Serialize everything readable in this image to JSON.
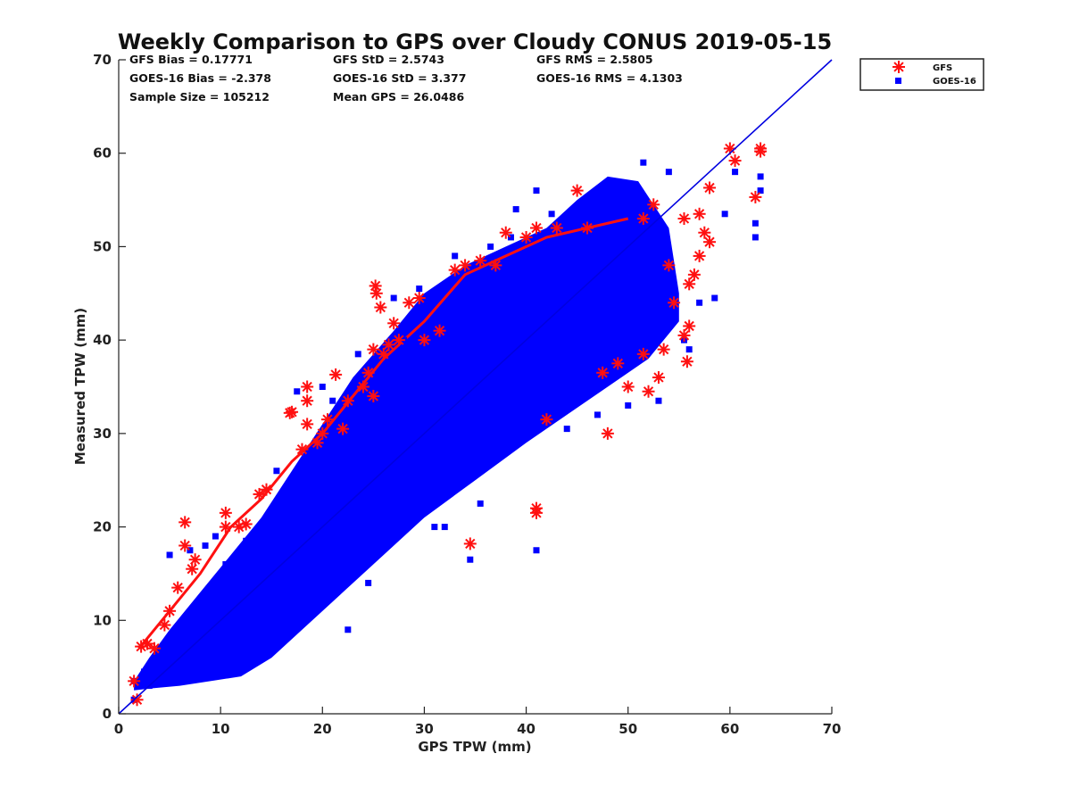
{
  "chart_data": {
    "type": "scatter",
    "title": "Weekly Comparison to GPS over Cloudy CONUS 2019-05-15",
    "xlabel": "GPS TPW (mm)",
    "ylabel": "Measured TPW (mm)",
    "xlim": [
      0,
      70
    ],
    "ylim": [
      0,
      70
    ],
    "xticks": [
      "0",
      "10",
      "20",
      "30",
      "40",
      "50",
      "60",
      "70"
    ],
    "yticks": [
      "0",
      "10",
      "20",
      "30",
      "40",
      "50",
      "60",
      "70"
    ],
    "grid": false,
    "legend_position": "outside-top-right",
    "stats": [
      [
        "GFS Bias = 0.17771",
        "GFS StD = 2.5743",
        "GFS RMS = 2.5805"
      ],
      [
        "GOES-16 Bias = -2.378",
        "GOES-16 StD = 3.377",
        "GOES-16 RMS = 4.1303"
      ],
      [
        "Sample Size = 105212",
        "Mean GPS = 26.0486"
      ]
    ],
    "reference_line": {
      "type": "one-to-one",
      "x": [
        0,
        70
      ],
      "y": [
        0,
        70
      ],
      "color": "#0000e0"
    },
    "series": [
      {
        "name": "GFS",
        "marker": "asterisk",
        "color": "#ff1010",
        "points": [
          [
            1.5,
            3.5
          ],
          [
            1.8,
            1.5
          ],
          [
            2.2,
            7.2
          ],
          [
            2.8,
            7.5
          ],
          [
            3.5,
            7.0
          ],
          [
            4.5,
            9.5
          ],
          [
            5.0,
            11.0
          ],
          [
            5.8,
            13.5
          ],
          [
            6.5,
            18.0
          ],
          [
            6.5,
            20.5
          ],
          [
            7.2,
            15.5
          ],
          [
            7.5,
            16.5
          ],
          [
            10.5,
            21.5
          ],
          [
            10.5,
            20.0
          ],
          [
            11.8,
            20.0
          ],
          [
            12.5,
            20.3
          ],
          [
            13.8,
            23.5
          ],
          [
            14.5,
            24.0
          ],
          [
            16.8,
            32.2
          ],
          [
            17.0,
            32.3
          ],
          [
            18.0,
            28.3
          ],
          [
            18.5,
            31.0
          ],
          [
            18.5,
            35.0
          ],
          [
            18.5,
            33.5
          ],
          [
            19.5,
            29.0
          ],
          [
            20.0,
            30.0
          ],
          [
            20.5,
            31.5
          ],
          [
            21.3,
            36.3
          ],
          [
            22.0,
            30.5
          ],
          [
            22.5,
            33.5
          ],
          [
            24.0,
            35.0
          ],
          [
            24.5,
            36.5
          ],
          [
            25.0,
            34.0
          ],
          [
            25.0,
            39.0
          ],
          [
            25.2,
            45.8
          ],
          [
            25.3,
            45.0
          ],
          [
            25.7,
            43.5
          ],
          [
            26.0,
            38.5
          ],
          [
            26.5,
            39.5
          ],
          [
            27.0,
            41.8
          ],
          [
            27.5,
            40.0
          ],
          [
            28.5,
            44.0
          ],
          [
            29.5,
            44.5
          ],
          [
            30.0,
            40.0
          ],
          [
            31.5,
            41.0
          ],
          [
            33.0,
            47.5
          ],
          [
            34.0,
            48.0
          ],
          [
            34.5,
            18.2
          ],
          [
            35.5,
            48.5
          ],
          [
            37.0,
            48.0
          ],
          [
            38.0,
            51.5
          ],
          [
            40.0,
            51.0
          ],
          [
            41.0,
            52.0
          ],
          [
            41.0,
            21.5
          ],
          [
            41.0,
            22.0
          ],
          [
            42.0,
            31.5
          ],
          [
            43.0,
            52.0
          ],
          [
            45.0,
            56.0
          ],
          [
            46.0,
            52.0
          ],
          [
            47.5,
            36.5
          ],
          [
            48.0,
            30.0
          ],
          [
            49.0,
            37.5
          ],
          [
            50.0,
            35.0
          ],
          [
            51.5,
            38.5
          ],
          [
            51.5,
            53.0
          ],
          [
            52.0,
            34.5
          ],
          [
            52.5,
            54.5
          ],
          [
            53.0,
            36.0
          ],
          [
            53.5,
            39.0
          ],
          [
            54.0,
            48.0
          ],
          [
            54.5,
            44.0
          ],
          [
            55.5,
            40.5
          ],
          [
            55.5,
            53.0
          ],
          [
            55.8,
            37.7
          ],
          [
            56.0,
            41.5
          ],
          [
            56.0,
            46.0
          ],
          [
            56.5,
            47.0
          ],
          [
            57.0,
            49.0
          ],
          [
            57.0,
            53.5
          ],
          [
            57.5,
            51.5
          ],
          [
            58.0,
            50.5
          ],
          [
            58.0,
            56.3
          ],
          [
            60.0,
            60.5
          ],
          [
            60.5,
            59.2
          ],
          [
            62.5,
            55.3
          ],
          [
            63.0,
            60.2
          ],
          [
            63.0,
            60.5
          ]
        ]
      },
      {
        "name": "GOES-16",
        "marker": "square",
        "color": "#0000ff",
        "points": [
          [
            1.5,
            3.5
          ],
          [
            1.5,
            1.5
          ],
          [
            2.5,
            4.5
          ],
          [
            3.0,
            3.0
          ],
          [
            5.0,
            17.0
          ],
          [
            7.0,
            17.5
          ],
          [
            8.5,
            18.0
          ],
          [
            9.5,
            19.0
          ],
          [
            10.5,
            16.0
          ],
          [
            12.5,
            18.5
          ],
          [
            15.5,
            26.0
          ],
          [
            17.5,
            34.5
          ],
          [
            18.5,
            24.0
          ],
          [
            20.0,
            35.0
          ],
          [
            21.0,
            33.5
          ],
          [
            22.5,
            9.0
          ],
          [
            23.5,
            38.5
          ],
          [
            24.5,
            14.0
          ],
          [
            25.5,
            19.0
          ],
          [
            26.5,
            26.5
          ],
          [
            27.0,
            44.5
          ],
          [
            28.0,
            40.0
          ],
          [
            29.5,
            45.5
          ],
          [
            30.5,
            25.0
          ],
          [
            31.0,
            20.0
          ],
          [
            32.0,
            20.0
          ],
          [
            33.0,
            49.0
          ],
          [
            34.5,
            16.5
          ],
          [
            35.5,
            22.5
          ],
          [
            36.5,
            50.0
          ],
          [
            38.5,
            51.0
          ],
          [
            39.0,
            54.0
          ],
          [
            41.0,
            17.5
          ],
          [
            41.0,
            56.0
          ],
          [
            42.5,
            53.5
          ],
          [
            44.0,
            30.5
          ],
          [
            47.0,
            32.0
          ],
          [
            48.5,
            57.0
          ],
          [
            50.0,
            33.0
          ],
          [
            51.5,
            59.0
          ],
          [
            53.0,
            33.5
          ],
          [
            54.0,
            58.0
          ],
          [
            55.5,
            40.0
          ],
          [
            56.0,
            39.0
          ],
          [
            57.0,
            44.0
          ],
          [
            58.5,
            44.5
          ],
          [
            59.5,
            53.5
          ],
          [
            60.5,
            58.0
          ],
          [
            62.5,
            52.5
          ],
          [
            62.5,
            51.0
          ],
          [
            63.0,
            57.5
          ],
          [
            63.0,
            56.0
          ]
        ]
      }
    ]
  }
}
